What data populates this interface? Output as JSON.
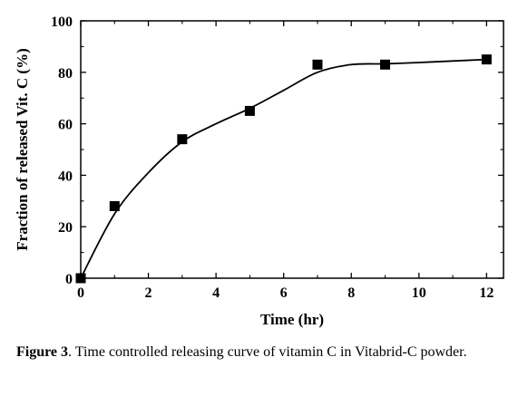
{
  "chart_data": {
    "type": "scatter",
    "title": "",
    "xlabel": "Time (hr)",
    "ylabel": "Fraction of released Vit. C (%)",
    "xlim": [
      0,
      12.5
    ],
    "ylim": [
      0,
      100
    ],
    "x_ticks": [
      0,
      2,
      4,
      6,
      8,
      10,
      12
    ],
    "y_ticks": [
      0,
      20,
      40,
      60,
      80,
      100
    ],
    "grid": false,
    "legend": "none",
    "series": [
      {
        "marker": "square",
        "color": "#000000",
        "x": [
          0,
          1,
          3,
          5,
          7,
          9,
          12
        ],
        "y": [
          0,
          28,
          54,
          65,
          83,
          83,
          85
        ]
      }
    ],
    "fit_curve": {
      "style": "smooth line",
      "color": "#000000",
      "x": [
        0,
        1,
        2,
        3,
        4,
        5,
        6,
        7,
        8,
        9,
        10,
        11,
        12
      ],
      "y": [
        0,
        25,
        41,
        53,
        60,
        66,
        73,
        80,
        83,
        83.3,
        83.8,
        84.4,
        85
      ]
    }
  },
  "caption": {
    "label": "Figure 3",
    "text": ". Time controlled releasing curve of vitamin C in Vitabrid-C powder."
  }
}
